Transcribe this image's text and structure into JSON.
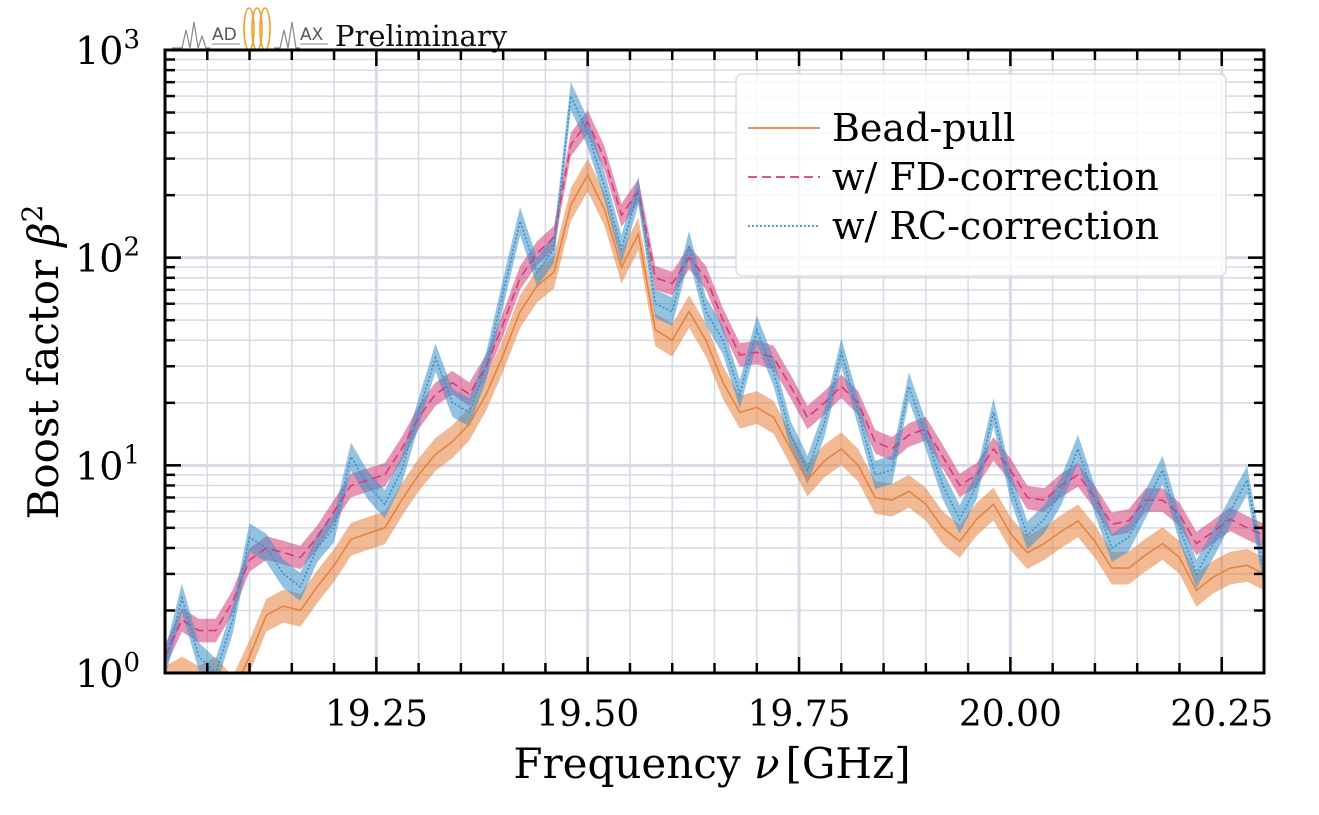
{
  "logo": {
    "text_left": "AD",
    "text_right": "AX",
    "tag": "Preliminary",
    "colors": {
      "wave": "#888888",
      "coils": "#f0a030",
      "text": "#555555"
    }
  },
  "chart_data": {
    "type": "line",
    "xlabel": "Frequency",
    "xlabel_symbol": "ν",
    "xlabel_unit": "[GHz]",
    "ylabel": "Boost factor",
    "ylabel_symbol": "β",
    "ylabel_sup": "2",
    "xlim": [
      19.0,
      20.3
    ],
    "ylim": [
      1,
      1000
    ],
    "yscale": "log",
    "xticks": [
      "19.25",
      "19.50",
      "19.75",
      "20.00",
      "20.25"
    ],
    "yticks": [
      {
        "base": "10",
        "exp": "0"
      },
      {
        "base": "10",
        "exp": "1"
      },
      {
        "base": "10",
        "exp": "2"
      },
      {
        "base": "10",
        "exp": "3"
      }
    ],
    "grid": true,
    "legend_position": "top-right",
    "series": [
      {
        "name": "Bead-pull",
        "color": "#e8823c",
        "dash": "solid",
        "x": [
          19.0,
          19.02,
          19.04,
          19.06,
          19.08,
          19.1,
          19.12,
          19.14,
          19.16,
          19.18,
          19.2,
          19.22,
          19.24,
          19.26,
          19.28,
          19.3,
          19.32,
          19.34,
          19.36,
          19.38,
          19.4,
          19.42,
          19.44,
          19.46,
          19.48,
          19.5,
          19.52,
          19.54,
          19.56,
          19.58,
          19.6,
          19.62,
          19.64,
          19.66,
          19.68,
          19.7,
          19.72,
          19.74,
          19.76,
          19.78,
          19.8,
          19.82,
          19.84,
          19.86,
          19.88,
          19.9,
          19.92,
          19.94,
          19.96,
          19.98,
          20.0,
          20.02,
          20.04,
          20.06,
          20.08,
          20.1,
          20.12,
          20.14,
          20.16,
          20.18,
          20.2,
          20.22,
          20.24,
          20.26,
          20.28,
          20.3
        ],
        "values": [
          0.9,
          1.0,
          0.9,
          1.0,
          0.8,
          1.2,
          1.9,
          2.1,
          2.0,
          2.6,
          3.3,
          4.4,
          4.7,
          5.0,
          6.8,
          9.0,
          11.3,
          13.0,
          15.8,
          22.0,
          34.0,
          55.0,
          73.0,
          85.0,
          180.0,
          250.0,
          170.0,
          90.0,
          130.0,
          45.0,
          40.0,
          55.0,
          40.0,
          25.0,
          18.0,
          19.0,
          17.0,
          12.0,
          8.5,
          10.5,
          12.0,
          10.0,
          7.0,
          6.8,
          7.5,
          6.5,
          5.0,
          4.3,
          5.5,
          6.5,
          4.7,
          3.8,
          4.2,
          4.8,
          5.4,
          4.3,
          3.2,
          3.2,
          3.7,
          4.2,
          3.6,
          2.5,
          2.9,
          3.2,
          3.3,
          3.0
        ]
      },
      {
        "name": "w/ FD-correction",
        "color": "#d63c78",
        "dash": "dashed",
        "x": [
          19.0,
          19.02,
          19.04,
          19.06,
          19.08,
          19.1,
          19.12,
          19.14,
          19.16,
          19.18,
          19.2,
          19.22,
          19.24,
          19.26,
          19.28,
          19.3,
          19.32,
          19.34,
          19.36,
          19.38,
          19.4,
          19.42,
          19.44,
          19.46,
          19.48,
          19.5,
          19.52,
          19.54,
          19.56,
          19.58,
          19.6,
          19.62,
          19.64,
          19.66,
          19.68,
          19.7,
          19.72,
          19.74,
          19.76,
          19.78,
          19.8,
          19.82,
          19.84,
          19.86,
          19.88,
          19.9,
          19.92,
          19.94,
          19.96,
          19.98,
          20.0,
          20.02,
          20.04,
          20.06,
          20.08,
          20.1,
          20.12,
          20.14,
          20.16,
          20.18,
          20.2,
          20.22,
          20.24,
          20.26,
          20.28,
          20.3
        ],
        "values": [
          1.2,
          1.8,
          1.6,
          1.6,
          2.2,
          3.5,
          4.0,
          3.8,
          3.6,
          4.5,
          6.0,
          8.0,
          8.5,
          9.0,
          12.0,
          17.0,
          22.0,
          25.0,
          22.0,
          30.0,
          48.0,
          80.0,
          105.0,
          125.0,
          350.0,
          450.0,
          300.0,
          160.0,
          210.0,
          80.0,
          75.0,
          100.0,
          80.0,
          50.0,
          34.0,
          35.0,
          33.0,
          24.0,
          17.0,
          20.0,
          24.0,
          20.0,
          13.0,
          12.0,
          14.0,
          15.0,
          11.0,
          8.0,
          9.0,
          12.0,
          9.5,
          7.0,
          6.8,
          8.0,
          9.0,
          7.0,
          5.2,
          5.4,
          6.8,
          6.8,
          5.8,
          4.2,
          4.8,
          5.5,
          5.0,
          4.6
        ]
      },
      {
        "name": "w/ RC-correction",
        "color": "#3c90c8",
        "dash": "dotted",
        "x": [
          19.0,
          19.02,
          19.04,
          19.06,
          19.08,
          19.1,
          19.12,
          19.14,
          19.16,
          19.18,
          19.2,
          19.22,
          19.24,
          19.26,
          19.28,
          19.3,
          19.32,
          19.34,
          19.36,
          19.38,
          19.4,
          19.42,
          19.44,
          19.46,
          19.48,
          19.5,
          19.52,
          19.54,
          19.56,
          19.58,
          19.6,
          19.62,
          19.64,
          19.66,
          19.68,
          19.7,
          19.72,
          19.74,
          19.76,
          19.78,
          19.8,
          19.82,
          19.84,
          19.86,
          19.88,
          19.9,
          19.92,
          19.94,
          19.96,
          19.98,
          20.0,
          20.02,
          20.04,
          20.06,
          20.08,
          20.1,
          20.12,
          20.14,
          20.16,
          20.18,
          20.2,
          20.22,
          20.24,
          20.26,
          20.28,
          20.3
        ],
        "values": [
          1.1,
          2.3,
          1.2,
          1.0,
          1.8,
          4.5,
          4.0,
          3.0,
          2.6,
          4.0,
          5.0,
          11.0,
          8.0,
          6.5,
          9.5,
          18.0,
          33.0,
          20.0,
          18.0,
          30.0,
          68.0,
          150.0,
          85.0,
          110.0,
          600.0,
          400.0,
          220.0,
          110.0,
          210.0,
          60.0,
          55.0,
          115.0,
          55.0,
          40.0,
          22.0,
          45.0,
          28.0,
          14.0,
          9.5,
          16.0,
          35.0,
          18.0,
          9.0,
          9.5,
          24.0,
          14.0,
          8.0,
          5.5,
          8.0,
          18.0,
          8.0,
          4.6,
          5.5,
          7.5,
          12.0,
          6.8,
          4.0,
          4.5,
          6.5,
          9.5,
          5.0,
          3.0,
          4.2,
          6.0,
          8.5,
          3.0
        ]
      }
    ]
  }
}
